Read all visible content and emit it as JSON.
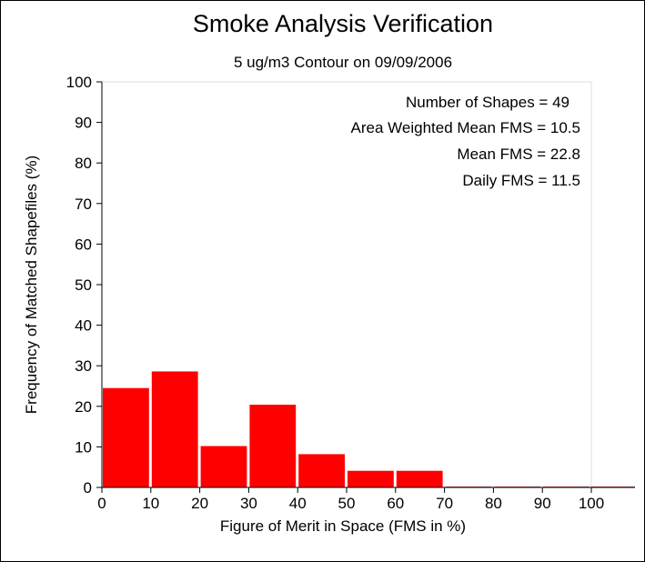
{
  "chart_data": {
    "type": "bar",
    "title": "Smoke Analysis Verification",
    "subtitle": "5 ug/m3 Contour on 09/09/2006",
    "xlabel": "Figure of Merit in Space (FMS in %)",
    "ylabel": "Frequency of Matched Shapefiles (%)",
    "xlim": [
      0,
      100
    ],
    "ylim": [
      0,
      100
    ],
    "xticks": [
      "0",
      "10",
      "20",
      "30",
      "40",
      "50",
      "60",
      "70",
      "80",
      "90",
      "100"
    ],
    "yticks": [
      "0",
      "10",
      "20",
      "30",
      "40",
      "50",
      "60",
      "70",
      "80",
      "90",
      "100"
    ],
    "bins": [
      {
        "start": 0,
        "end": 10,
        "value": 24.5
      },
      {
        "start": 10,
        "end": 20,
        "value": 28.6
      },
      {
        "start": 20,
        "end": 30,
        "value": 10.2
      },
      {
        "start": 30,
        "end": 40,
        "value": 20.4
      },
      {
        "start": 40,
        "end": 50,
        "value": 8.2
      },
      {
        "start": 50,
        "end": 60,
        "value": 4.1
      },
      {
        "start": 60,
        "end": 70,
        "value": 4.1
      },
      {
        "start": 70,
        "end": 80,
        "value": 0
      },
      {
        "start": 80,
        "end": 90,
        "value": 0
      },
      {
        "start": 90,
        "end": 100,
        "value": 0
      }
    ],
    "bar_color": "#ff0000",
    "grid": false,
    "annotations": [
      "Number of Shapes = 49",
      "Area Weighted Mean FMS = 10.5",
      "Mean FMS = 22.8",
      "Daily FMS = 11.5"
    ]
  }
}
